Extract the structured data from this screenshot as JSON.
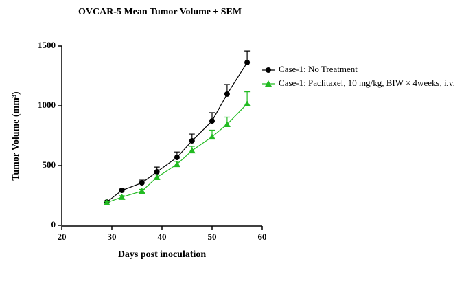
{
  "chart_data": {
    "type": "line",
    "title": "OVCAR-5 Mean Tumor Volume ± SEM",
    "x_label": "Days post inoculation",
    "y_label": "Tumor Volume (mm³)",
    "xlim": [
      20,
      60
    ],
    "xticks": [
      20,
      30,
      40,
      50,
      60
    ],
    "ylim": [
      0,
      1500
    ],
    "yticks": [
      0,
      500,
      1000,
      1500
    ],
    "grid": false,
    "legend_position": "right",
    "x": [
      29,
      32,
      36,
      39,
      43,
      46,
      50,
      53,
      57
    ],
    "series": [
      {
        "name": "Case-1: No Treatment",
        "color": "#000000",
        "marker": "circle",
        "values": [
          195,
          293,
          356,
          448,
          569,
          707,
          873,
          1098,
          1362
        ],
        "errors": [
          10,
          12,
          23,
          40,
          45,
          57,
          70,
          80,
          97
        ]
      },
      {
        "name": "Case-1: Paclitaxel, 10 mg/kg, BIW × 4weeks, i.v.",
        "color": "#22bb22",
        "marker": "triangle",
        "values": [
          190,
          236,
          287,
          402,
          511,
          626,
          741,
          845,
          1017
        ],
        "errors": [
          8,
          12,
          15,
          20,
          25,
          35,
          55,
          60,
          100
        ]
      }
    ]
  }
}
